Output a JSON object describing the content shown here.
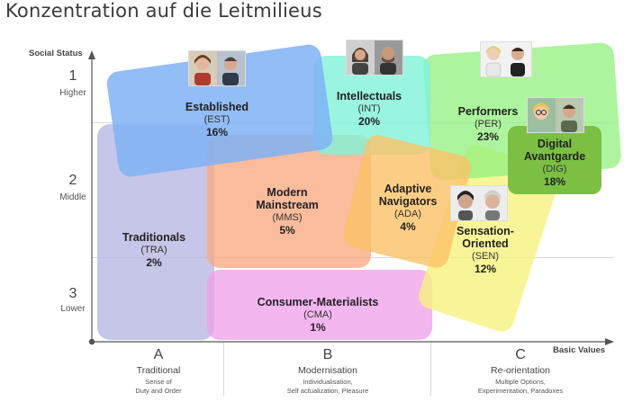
{
  "title": "Konzentration auf die Leitmilieus",
  "axes": {
    "y_label": "Social Status",
    "x_label": "Basic Values",
    "rows": [
      {
        "num": "1",
        "name": "Higher"
      },
      {
        "num": "2",
        "name": "Middle"
      },
      {
        "num": "3",
        "name": "Lower"
      }
    ],
    "cols": [
      {
        "letter": "A",
        "name": "Traditional",
        "desc": "Sense of\nDuty and Order"
      },
      {
        "letter": "B",
        "name": "Modernisation",
        "desc": "Individualisation,\nSelf actualization, Pleasure"
      },
      {
        "letter": "C",
        "name": "Re-orientation",
        "desc": "Multiple Options,\nExperimentation, Paradoxes"
      }
    ]
  },
  "milieus": {
    "established": {
      "name": "Established",
      "abbr": "(EST)",
      "pct": "16%",
      "color": "#7fb2f5"
    },
    "intellectuals": {
      "name": "Intellectuals",
      "abbr": "(INT)",
      "pct": "20%",
      "color": "#7ff2d8"
    },
    "performers": {
      "name": "Performers",
      "abbr": "(PER)",
      "pct": "23%",
      "color": "#90f07c"
    },
    "digital": {
      "name1": "Digital",
      "name2": "Avantgarde",
      "abbr": "(DIG)",
      "pct": "18%",
      "color": "#7cc043"
    },
    "traditionals": {
      "name": "Traditionals",
      "abbr": "(TRA)",
      "pct": "2%",
      "color": "#b8b8e2"
    },
    "modern": {
      "name1": "Modern",
      "name2": "Mainstream",
      "abbr": "(MMS)",
      "pct": "5%",
      "color": "#f9a980"
    },
    "adaptive": {
      "name1": "Adaptive",
      "name2": "Navigators",
      "abbr": "(ADA)",
      "pct": "4%",
      "color": "#fbc267"
    },
    "sensation": {
      "name1": "Sensation-",
      "name2": "Oriented",
      "abbr": "(SEN)",
      "pct": "12%",
      "color": "#f6f27e"
    },
    "consumer": {
      "name": "Consumer-Materialists",
      "abbr": "(CMA)",
      "pct": "1%",
      "color": "#ef9ee9"
    }
  }
}
